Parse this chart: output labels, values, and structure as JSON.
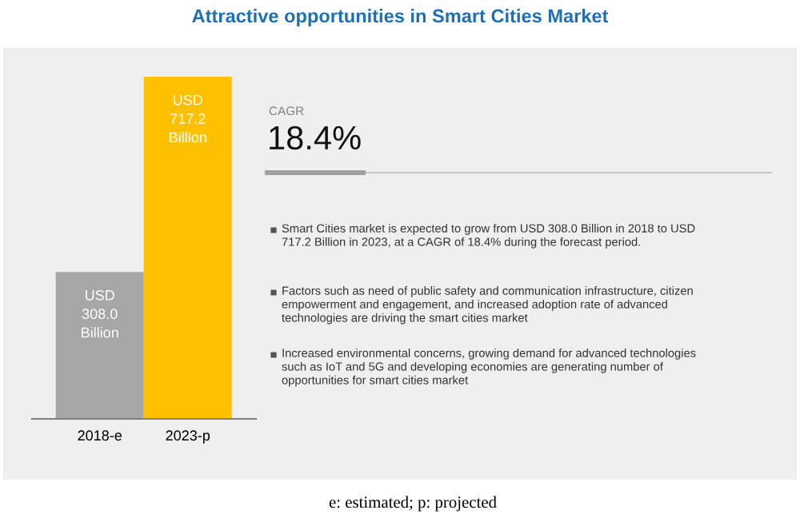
{
  "chart_data": [
    {
      "type": "bar",
      "title": "Attractive opportunities in Smart Cities Market",
      "categories": [
        "2018-e",
        "2023-p"
      ],
      "values": [
        308.0,
        717.2
      ],
      "colors": [
        "#a6a6a6",
        "#ffc000"
      ],
      "value_labels": [
        "USD\n308.0\nBillion",
        "USD\n717.2\nBillion"
      ],
      "annotations": [
        "e: estimated; p: projected"
      ]
    },
    {
      "type": "other",
      "annotations": [
        "CAGR",
        "18.4%",
        "Smart Cities market is expected to grow from USD 308.0 Billion in 2018 to USD\n717.2 Billion in 2023, at a CAGR of 18.4% during the forecast period.",
        "Factors such as need of public safety and communication infrastructure, citizen\nempowerment and engagement, and increased adoption rate of advanced\ntechnologies are driving the smart cities market",
        "Increased environmental concerns, growing demand for advanced technologies\nsuch as IoT and 5G and developing economies are generating number of\nopportunities for smart cities market"
      ]
    }
  ]
}
